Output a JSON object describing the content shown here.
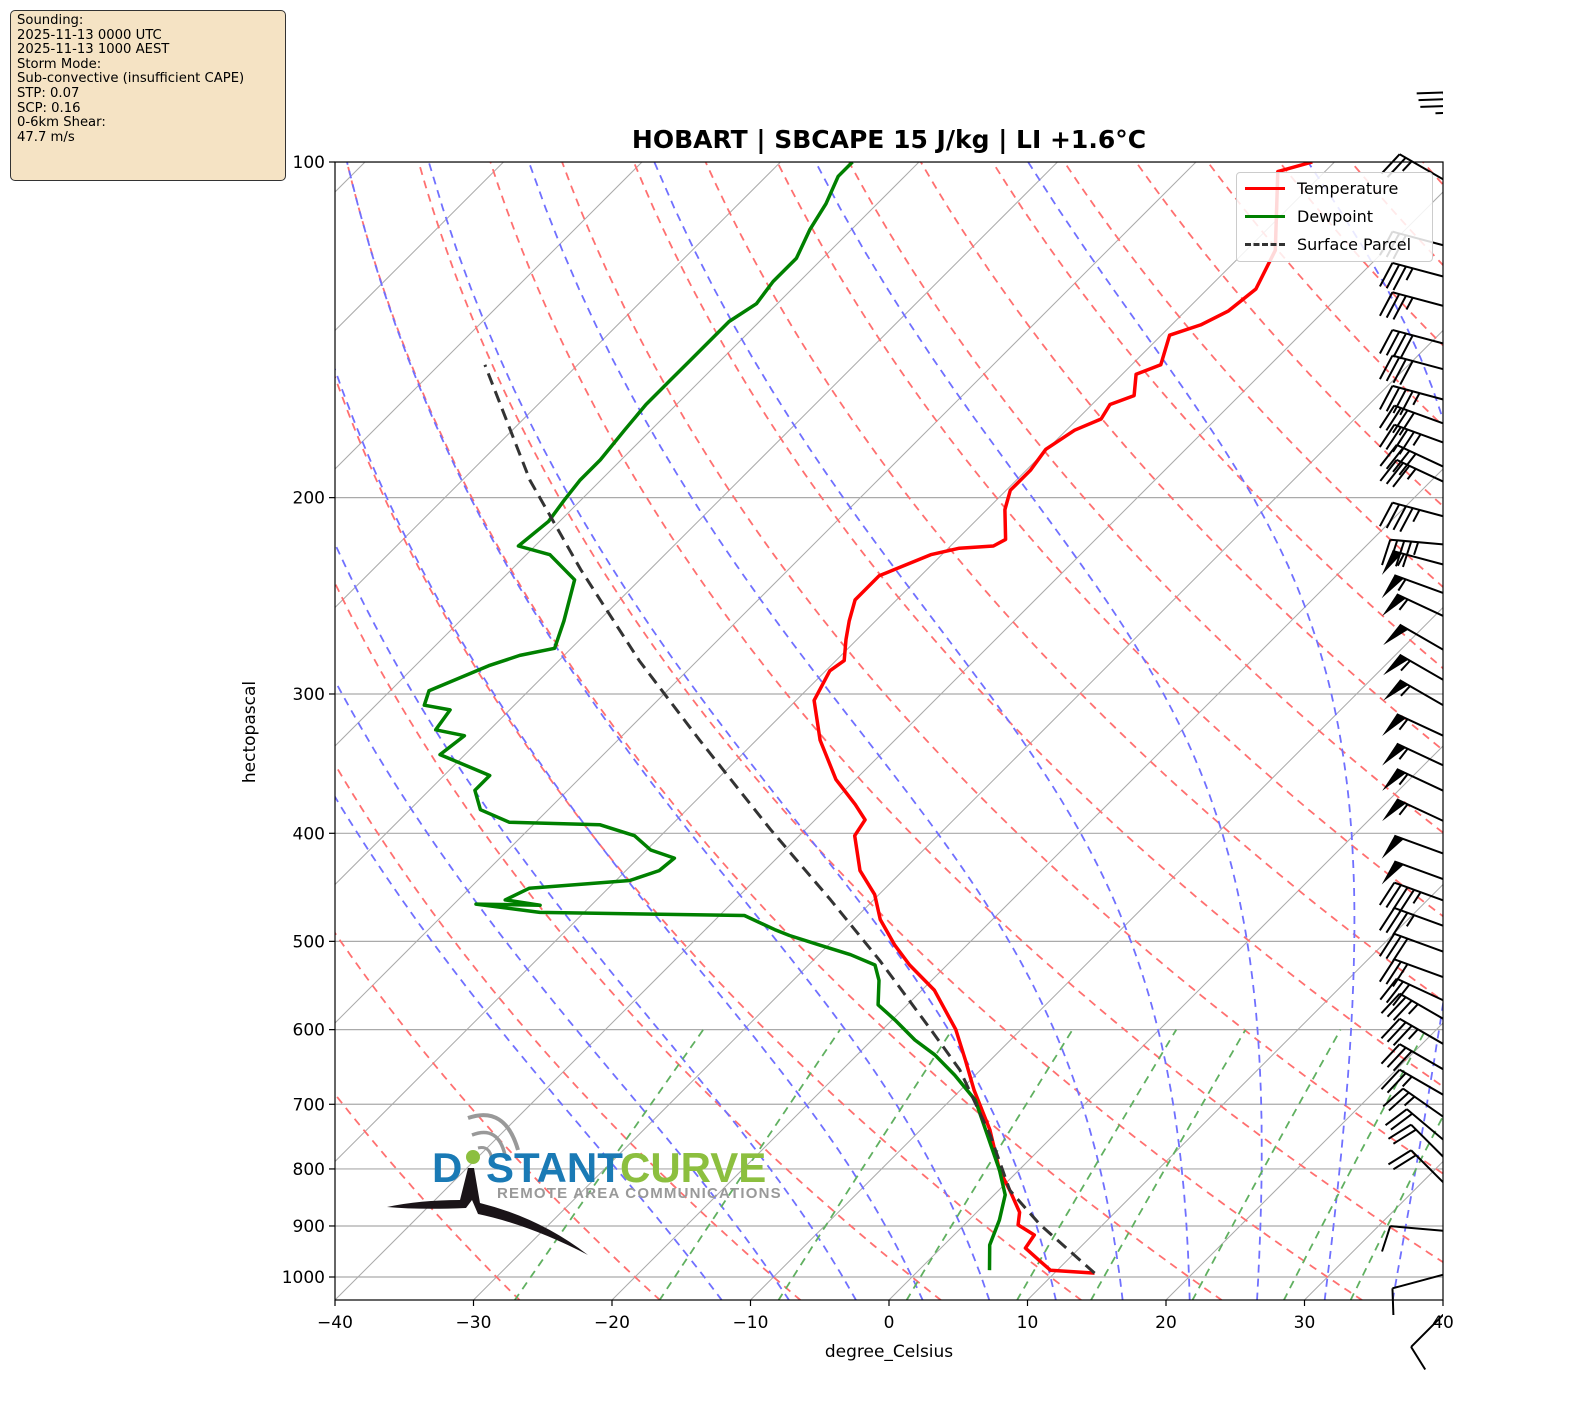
{
  "info_box": {
    "lines": [
      "Sounding:",
      "2025-11-13 0000 UTC",
      "2025-11-13 1000 AEST",
      "Storm Mode:",
      "Sub-convective (insufficient CAPE)",
      "STP: 0.07",
      "SCP: 0.16",
      "0-6km Shear:",
      "47.7 m/s"
    ]
  },
  "logo": {
    "word1": "D",
    "word1b": "STANT",
    "word2": "CURVE",
    "tagline": "REMOTE AREA COMMUNICATIONS",
    "blue": "#1a7ab5",
    "green": "#8cbf3f",
    "gray": "#999999"
  },
  "chart_data": {
    "type": "line",
    "subtype": "skew-T log-p",
    "title": "HOBART | SBCAPE 15 J/kg | LI +1.6°C",
    "xlabel": "degree_Celsius",
    "ylabel": "hectopascal",
    "xlim": [
      -40,
      40
    ],
    "ylim": [
      1048,
      100
    ],
    "y_scale": "log",
    "skew_degrees": 45,
    "x_ticks": [
      "−40",
      "−30",
      "−20",
      "−10",
      "0",
      "10",
      "20",
      "30",
      "40"
    ],
    "x_tick_values": [
      -40,
      -30,
      -20,
      -10,
      0,
      10,
      20,
      30,
      40
    ],
    "y_ticks": [
      100,
      200,
      300,
      400,
      500,
      600,
      700,
      800,
      900,
      1000
    ],
    "grid": true,
    "legend": {
      "position": "top-right",
      "entries": [
        "Temperature",
        "Dewpoint",
        "Surface Parcel"
      ]
    },
    "colors": {
      "temperature": "#ff0000",
      "dewpoint": "#008000",
      "parcel": "#333333",
      "dry_adiabat": "#ff7070",
      "moist_adiabat": "#7070ff",
      "mixing_ratio": "#60b060",
      "isotherm": "#aaaaaa"
    },
    "dry_adiabats_theta_C": [
      -30,
      -20,
      -10,
      0,
      10,
      20,
      30,
      40,
      50,
      60,
      70,
      80,
      90,
      100,
      110,
      120,
      130,
      140,
      150,
      160,
      170,
      180,
      190,
      200
    ],
    "moist_adiabats_T1000_C": [
      -15,
      -10,
      -5,
      0,
      5,
      10,
      15,
      20,
      25,
      30,
      35
    ],
    "mixing_ratios_gkg": [
      0.4,
      1,
      2,
      4,
      7,
      10,
      16,
      24,
      32
    ],
    "mixing_ratio_top_hPa": 600,
    "series": [
      {
        "name": "Temperature",
        "points_p_T": [
          [
            992,
            12.9
          ],
          [
            986,
            9.5
          ],
          [
            969,
            8.2
          ],
          [
            942,
            6.1
          ],
          [
            917,
            5.8
          ],
          [
            898,
            3.9
          ],
          [
            875,
            3.1
          ],
          [
            836,
            0.8
          ],
          [
            802,
            -1.4
          ],
          [
            738,
            -5.0
          ],
          [
            680,
            -9.0
          ],
          [
            639,
            -11.8
          ],
          [
            600,
            -14.7
          ],
          [
            553,
            -19.1
          ],
          [
            525,
            -22.7
          ],
          [
            504,
            -25.2
          ],
          [
            478,
            -28.1
          ],
          [
            454,
            -30.3
          ],
          [
            432,
            -33.1
          ],
          [
            402,
            -36.0
          ],
          [
            389,
            -36.4
          ],
          [
            377,
            -38.2
          ],
          [
            358,
            -41.4
          ],
          [
            330,
            -45.4
          ],
          [
            304,
            -48.7
          ],
          [
            286,
            -49.7
          ],
          [
            280,
            -49.4
          ],
          [
            268,
            -50.8
          ],
          [
            258,
            -51.9
          ],
          [
            247,
            -53.0
          ],
          [
            235,
            -53.0
          ],
          [
            230,
            -51.9
          ],
          [
            225,
            -50.8
          ],
          [
            222,
            -49.2
          ],
          [
            221,
            -46.9
          ],
          [
            218,
            -46.5
          ],
          [
            205,
            -48.7
          ],
          [
            197,
            -49.7
          ],
          [
            189,
            -49.7
          ],
          [
            181,
            -50.1
          ],
          [
            174,
            -49.4
          ],
          [
            170,
            -48.3
          ],
          [
            165,
            -48.7
          ],
          [
            162,
            -47.6
          ],
          [
            155,
            -49.0
          ],
          [
            152,
            -47.9
          ],
          [
            143,
            -49.4
          ],
          [
            140,
            -47.9
          ],
          [
            136,
            -46.9
          ],
          [
            130,
            -46.5
          ],
          [
            120,
            -47.9
          ],
          [
            102,
            -53.4
          ],
          [
            100,
            -51.6
          ]
        ]
      },
      {
        "name": "Dewpoint",
        "points_p_T": [
          [
            986,
            5.1
          ],
          [
            936,
            3.3
          ],
          [
            889,
            2.2
          ],
          [
            844,
            0.8
          ],
          [
            802,
            -1.4
          ],
          [
            754,
            -4.3
          ],
          [
            694,
            -8.2
          ],
          [
            659,
            -11.5
          ],
          [
            632,
            -14.4
          ],
          [
            613,
            -16.9
          ],
          [
            588,
            -19.8
          ],
          [
            570,
            -22.1
          ],
          [
            542,
            -23.8
          ],
          [
            525,
            -25.2
          ],
          [
            514,
            -27.7
          ],
          [
            504,
            -30.6
          ],
          [
            494,
            -33.5
          ],
          [
            488,
            -35.0
          ],
          [
            474,
            -38.2
          ],
          [
            471,
            -53.2
          ],
          [
            463,
            -58.4
          ],
          [
            464,
            -53.7
          ],
          [
            459,
            -56.6
          ],
          [
            448,
            -55.7
          ],
          [
            441,
            -49.0
          ],
          [
            432,
            -47.6
          ],
          [
            421,
            -47.4
          ],
          [
            414,
            -49.7
          ],
          [
            402,
            -51.9
          ],
          [
            393,
            -55.2
          ],
          [
            391,
            -61.9
          ],
          [
            381,
            -64.9
          ],
          [
            366,
            -66.7
          ],
          [
            355,
            -66.7
          ],
          [
            340,
            -71.8
          ],
          [
            327,
            -71.4
          ],
          [
            323,
            -73.9
          ],
          [
            310,
            -74.3
          ],
          [
            307,
            -76.5
          ],
          [
            298,
            -77.2
          ],
          [
            283,
            -74.7
          ],
          [
            277,
            -73.2
          ],
          [
            273,
            -71.2
          ],
          [
            258,
            -72.5
          ],
          [
            237,
            -74.7
          ],
          [
            225,
            -78.3
          ],
          [
            221,
            -81.2
          ],
          [
            210,
            -80.8
          ],
          [
            201,
            -81.2
          ],
          [
            193,
            -81.5
          ],
          [
            185,
            -81.5
          ],
          [
            174,
            -81.9
          ],
          [
            165,
            -82.2
          ],
          [
            157,
            -82.2
          ],
          [
            151,
            -82.2
          ],
          [
            144,
            -82.2
          ],
          [
            139,
            -82.2
          ],
          [
            134,
            -81.5
          ],
          [
            128,
            -81.9
          ],
          [
            122,
            -81.9
          ],
          [
            115,
            -83.0
          ],
          [
            109,
            -83.7
          ],
          [
            103,
            -84.8
          ],
          [
            100,
            -84.8
          ]
        ]
      },
      {
        "name": "Surface Parcel",
        "points_p_T": [
          [
            992,
            12.9
          ],
          [
            898,
            5.5
          ],
          [
            836,
            0.8
          ],
          [
            746,
            -4.6
          ],
          [
            652,
            -11.5
          ],
          [
            600,
            -16.5
          ],
          [
            520,
            -25.2
          ],
          [
            459,
            -33.1
          ],
          [
            397,
            -42.5
          ],
          [
            330,
            -54.1
          ],
          [
            280,
            -64.2
          ],
          [
            232,
            -75.0
          ],
          [
            193,
            -85.1
          ],
          [
            152,
            -96.7
          ]
        ]
      }
    ],
    "wind_barbs_kt": [
      {
        "p": 100,
        "speed": 35,
        "dir": 345
      },
      {
        "p": 106,
        "speed": 25,
        "dir": 300
      },
      {
        "p": 120,
        "speed": 30,
        "dir": 285
      },
      {
        "p": 128,
        "speed": 35,
        "dir": 285
      },
      {
        "p": 136,
        "speed": 35,
        "dir": 285
      },
      {
        "p": 147,
        "speed": 40,
        "dir": 285
      },
      {
        "p": 155,
        "speed": 40,
        "dir": 285
      },
      {
        "p": 165,
        "speed": 45,
        "dir": 285
      },
      {
        "p": 174,
        "speed": 40,
        "dir": 290
      },
      {
        "p": 181,
        "speed": 45,
        "dir": 290
      },
      {
        "p": 191,
        "speed": 40,
        "dir": 295
      },
      {
        "p": 197,
        "speed": 35,
        "dir": 295
      },
      {
        "p": 210,
        "speed": 45,
        "dir": 285
      },
      {
        "p": 221,
        "speed": 45,
        "dir": 275
      },
      {
        "p": 232,
        "speed": 55,
        "dir": 285
      },
      {
        "p": 247,
        "speed": 55,
        "dir": 290
      },
      {
        "p": 260,
        "speed": 55,
        "dir": 295
      },
      {
        "p": 280,
        "speed": 50,
        "dir": 300
      },
      {
        "p": 298,
        "speed": 55,
        "dir": 300
      },
      {
        "p": 314,
        "speed": 55,
        "dir": 300
      },
      {
        "p": 333,
        "speed": 55,
        "dir": 295
      },
      {
        "p": 354,
        "speed": 55,
        "dir": 295
      },
      {
        "p": 373,
        "speed": 55,
        "dir": 295
      },
      {
        "p": 397,
        "speed": 55,
        "dir": 295
      },
      {
        "p": 423,
        "speed": 50,
        "dir": 290
      },
      {
        "p": 446,
        "speed": 50,
        "dir": 290
      },
      {
        "p": 466,
        "speed": 45,
        "dir": 290
      },
      {
        "p": 491,
        "speed": 35,
        "dir": 290
      },
      {
        "p": 518,
        "speed": 30,
        "dir": 290
      },
      {
        "p": 546,
        "speed": 30,
        "dir": 290
      },
      {
        "p": 575,
        "speed": 30,
        "dir": 295
      },
      {
        "p": 600,
        "speed": 35,
        "dir": 300
      },
      {
        "p": 632,
        "speed": 35,
        "dir": 300
      },
      {
        "p": 666,
        "speed": 30,
        "dir": 300
      },
      {
        "p": 702,
        "speed": 25,
        "dir": 300
      },
      {
        "p": 738,
        "speed": 25,
        "dir": 305
      },
      {
        "p": 778,
        "speed": 20,
        "dir": 310
      },
      {
        "p": 811,
        "speed": 20,
        "dir": 315
      },
      {
        "p": 855,
        "speed": 20,
        "dir": 315
      },
      {
        "p": 912,
        "speed": 10,
        "dir": 275
      },
      {
        "p": 985,
        "speed": 10,
        "dir": 255
      },
      {
        "p": 1040,
        "speed": 10,
        "dir": 225
      }
    ]
  }
}
